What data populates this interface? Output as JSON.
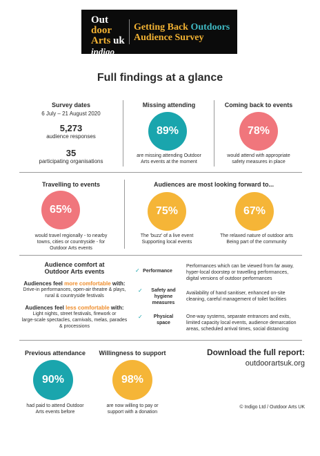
{
  "logo": {
    "line1": "Out",
    "line2": "door",
    "line3a": "Arts",
    "line3b": "uk",
    "line4": "indigo",
    "title_a": "Getting Back",
    "title_b": "Outdoors",
    "title_c": "Audience Survey"
  },
  "page_title": "Full findings at a glance",
  "survey": {
    "heading": "Survey dates",
    "dates": "6 July – 21 August 2020",
    "responses": "5,273",
    "responses_label": "audience responses",
    "orgs": "35",
    "orgs_label": "participating organisations"
  },
  "missing": {
    "heading": "Missing attending",
    "value": "89%",
    "caption1": "are missing attending Outdoor",
    "caption2": "Arts events at the moment"
  },
  "coming_back": {
    "heading": "Coming back to events",
    "value": "78%",
    "caption1": "would attend with appropriate",
    "caption2": "safety measures in place"
  },
  "travelling": {
    "heading": "Travelling to events",
    "value": "65%",
    "caption1": "would travel regionally - to nearby",
    "caption2": "towns, cities or countryside - for",
    "caption3": "Outdoor Arts events"
  },
  "looking_forward": {
    "heading": "Audiences are most looking forward to...",
    "item1": {
      "value": "75%",
      "caption1": "The 'buzz' of a live event",
      "caption2": "Supporting local events"
    },
    "item2": {
      "value": "67%",
      "caption1": "The relaxed nature of outdoor arts",
      "caption2": "Being part of the community"
    }
  },
  "comfort": {
    "heading1": "Audience comfort at",
    "heading2": "Outdoor Arts events",
    "more_a": "Audiences feel",
    "more_b": "more comfortable",
    "more_c": "with:",
    "more_text1": "Drive-in performances, open-air theatre & plays,",
    "more_text2": "rural & countryside festivals",
    "less_a": "Audiences feel",
    "less_b": "less comfortable",
    "less_c": "with:",
    "less_text1": "Light nights, street festivals, firework or",
    "less_text2": "large-scale spectacles, carnivals, melas, parades",
    "less_text3": "& processions"
  },
  "factors": {
    "performance_label": "Performance",
    "performance_text1": "Performances which can be viewed from far away,",
    "performance_text2": "hyper-local doorstep or travelling performances,",
    "performance_text3": "digital versions of outdoor performances",
    "safety_label1": "Safety and",
    "safety_label2": "hygiene",
    "safety_label3": "measures",
    "safety_text1": "Availability of hand sanitiser, enhanced on-site",
    "safety_text2": "cleaning, careful management of toilet facilities",
    "space_label1": "Physical",
    "space_label2": "space",
    "space_text1": "One-way systems, separate entrances and exits,",
    "space_text2": "limited capacity local events, audience demarcation",
    "space_text3": "areas, scheduled arrival times, social distancing"
  },
  "previous": {
    "heading": "Previous attendance",
    "value": "90%",
    "caption1": "had paid to attend Outdoor",
    "caption2": "Arts events before"
  },
  "willingness": {
    "heading": "Willingness to support",
    "value": "98%",
    "caption1": "are now willing to pay or",
    "caption2": "support with a donation"
  },
  "download": {
    "heading": "Download the full report:",
    "url": "outdoorartsuk.org"
  },
  "copyright": "© Indigo Ltd / Outdoor Arts UK"
}
